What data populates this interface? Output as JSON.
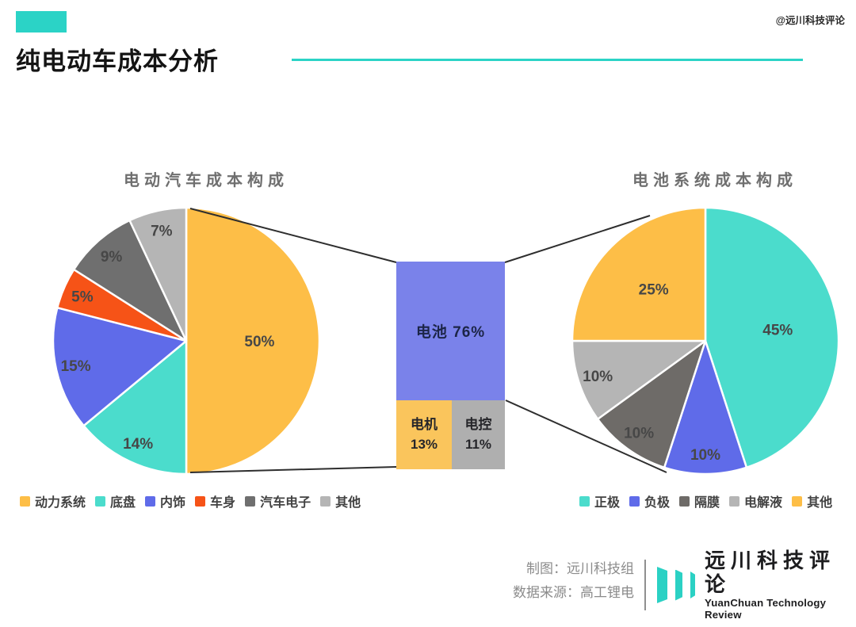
{
  "header": {
    "title": "纯电动车成本分析",
    "watermark": "@远川科技评论",
    "accent_color": "#2BD3C6"
  },
  "chart_data": [
    {
      "id": "vehicle-cost-pie",
      "type": "pie",
      "title": "电动汽车成本构成",
      "start_angle_deg": 0,
      "direction": "clockwise",
      "legend_position": "bottom",
      "value_suffix": "%",
      "slices": [
        {
          "label": "动力系统",
          "value": 50,
          "color": "#FDBE47"
        },
        {
          "label": "底盘",
          "value": 14,
          "color": "#4BDCCC"
        },
        {
          "label": "内饰",
          "value": 15,
          "color": "#5F6BE9"
        },
        {
          "label": "车身",
          "value": 5,
          "color": "#F65317"
        },
        {
          "label": "汽车电子",
          "value": 9,
          "color": "#6F6F6F"
        },
        {
          "label": "其他",
          "value": 7,
          "color": "#B5B5B5"
        }
      ]
    },
    {
      "id": "battery-breakdown-block",
      "type": "stacked-block",
      "value_suffix": "%",
      "segments": [
        {
          "label": "电池",
          "value": 76,
          "color": "#7A82EA"
        },
        {
          "label": "电机",
          "value": 13,
          "color": "#FAC55C"
        },
        {
          "label": "电控",
          "value": 11,
          "color": "#AFAFAF"
        }
      ]
    },
    {
      "id": "battery-cost-pie",
      "type": "pie",
      "title": "电池系统成本构成",
      "start_angle_deg": 0,
      "direction": "clockwise",
      "legend_position": "bottom",
      "value_suffix": "%",
      "slices": [
        {
          "label": "正极",
          "value": 45,
          "color": "#4BDCCC"
        },
        {
          "label": "负极",
          "value": 10,
          "color": "#5F6BE9"
        },
        {
          "label": "隔膜",
          "value": 10,
          "color": "#6E6B68"
        },
        {
          "label": "电解液",
          "value": 10,
          "color": "#B5B5B5"
        },
        {
          "label": "其他",
          "value": 25,
          "color": "#FDBE47"
        }
      ]
    }
  ],
  "footer": {
    "credit_line1": "制图：远川科技组",
    "credit_line2": "数据来源：高工锂电",
    "logo_cn": "远川科技评论",
    "logo_en": "YuanChuan Technology Review",
    "logo_color": "#2BD1C4"
  }
}
